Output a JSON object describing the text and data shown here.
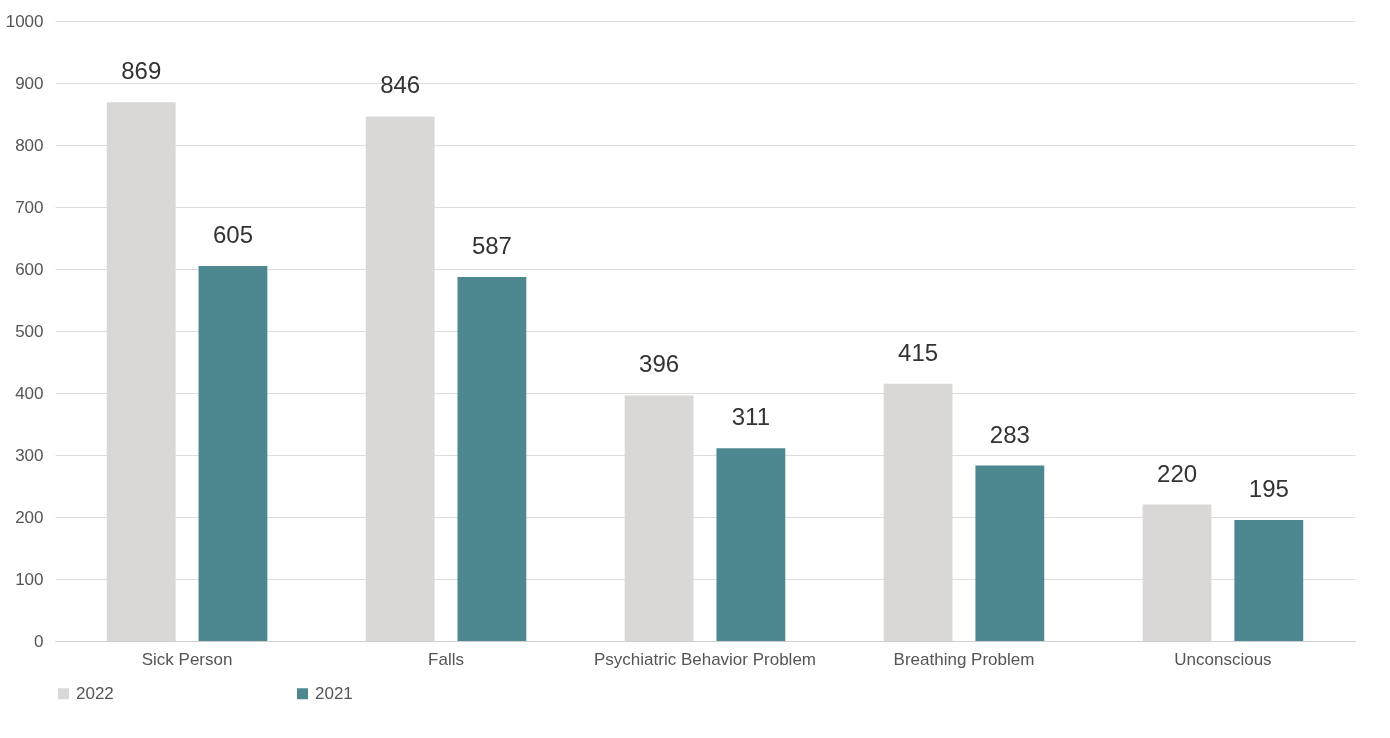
{
  "chart_data": {
    "type": "bar",
    "categories": [
      "Sick Person",
      "Falls",
      "Psychiatric Behavior Problem",
      "Breathing Problem",
      "Unconscious"
    ],
    "series": [
      {
        "name": "2022",
        "color": "#d9d8d6",
        "values": [
          869,
          846,
          396,
          415,
          220
        ]
      },
      {
        "name": "2021",
        "color": "#4d878f",
        "values": [
          605,
          587,
          311,
          283,
          195
        ]
      }
    ],
    "ylim": [
      0,
      1000
    ],
    "yticks": [
      0,
      100,
      200,
      300,
      400,
      500,
      600,
      700,
      800,
      900,
      1000
    ],
    "grid": "y",
    "legend": "bottom",
    "data_labels": true
  }
}
